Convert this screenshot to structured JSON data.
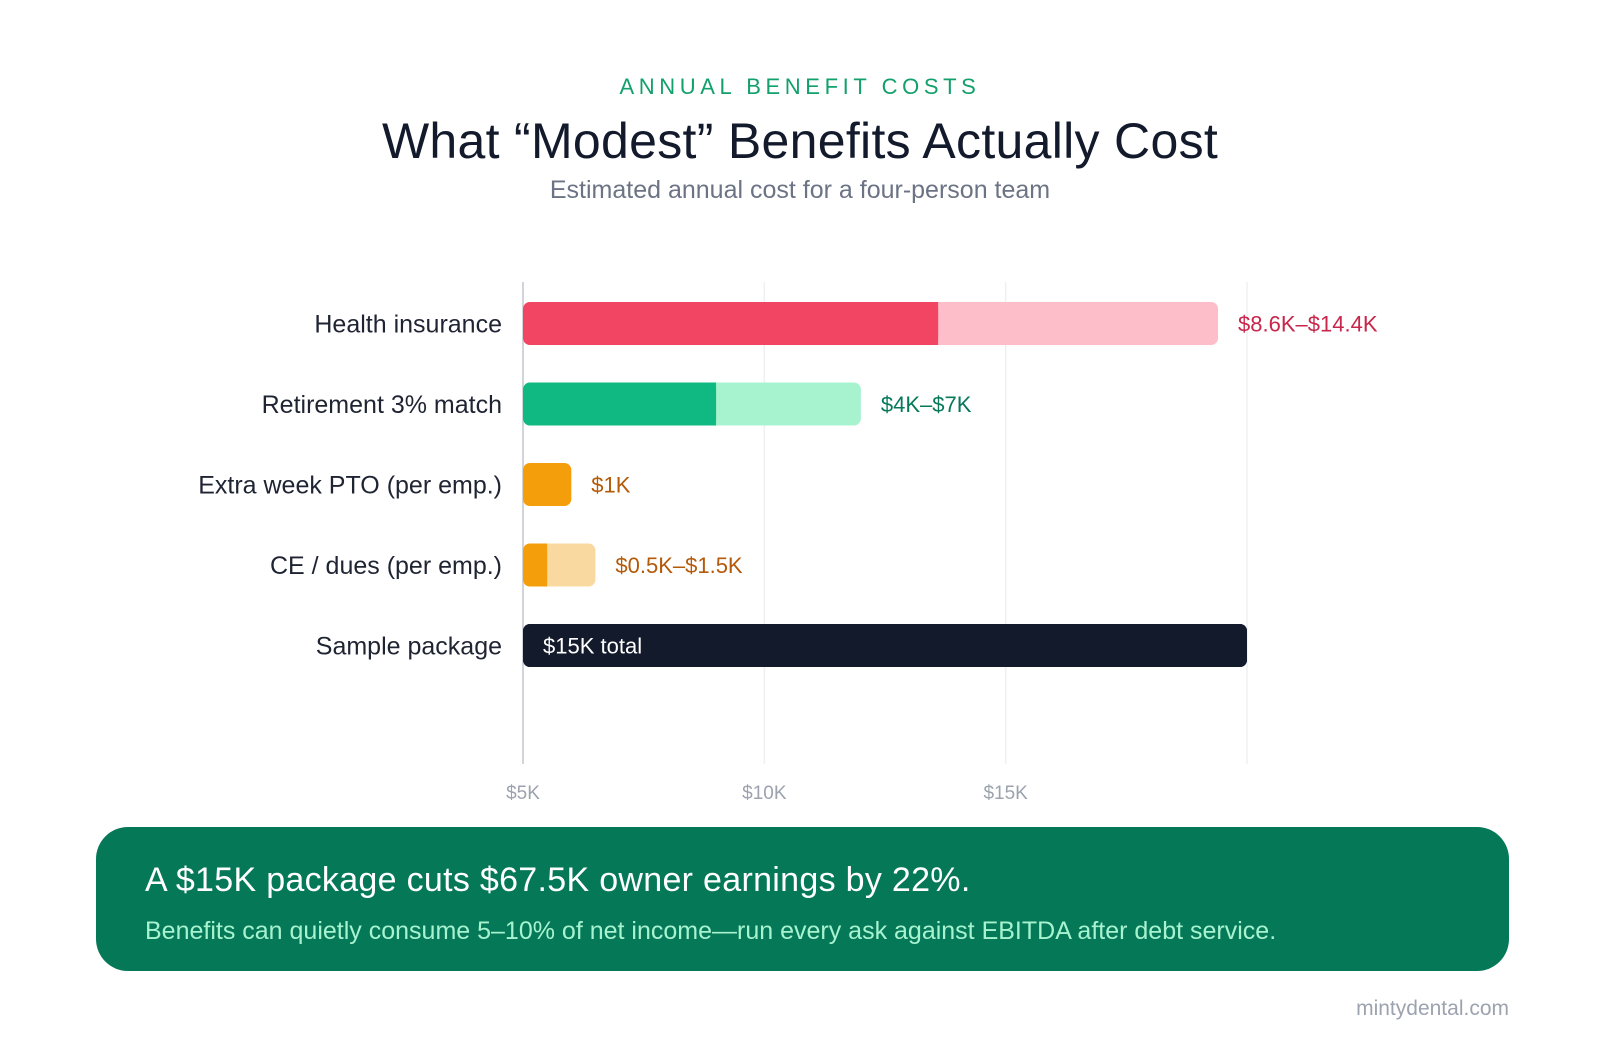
{
  "header": {
    "kicker": "ANNUAL BENEFIT COSTS",
    "title": "What “Modest” Benefits Actually Cost",
    "subtitle": "Estimated annual cost for a four-person team"
  },
  "chart_data": {
    "type": "bar",
    "orientation": "horizontal",
    "stacked_range": true,
    "categories": [
      "Health insurance",
      "Retirement 3% match",
      "Extra week PTO (per emp.)",
      "CE / dues (per emp.)",
      "Sample package"
    ],
    "series": [
      {
        "low": 8.6,
        "high": 14.4
      },
      {
        "low": 4,
        "high": 7
      },
      {
        "low": 1,
        "high": 1
      },
      {
        "low": 0.5,
        "high": 1.5
      },
      {
        "low": 15,
        "high": 15
      }
    ],
    "value_labels": [
      "$8.6K–$14.4K",
      "$4K–$7K",
      "$1K",
      "$0.5K–$1.5K",
      "$15K total"
    ],
    "value_label_inside": [
      false,
      false,
      false,
      false,
      true
    ],
    "colors": {
      "low": [
        "#f24463",
        "#10b981",
        "#f59e0b",
        "#f59e0b",
        "#121a2c"
      ],
      "high": [
        "#fdbec9",
        "#a7f3d0",
        "#fde0a8",
        "#fad9a0",
        "#121a2c"
      ],
      "label": [
        "#c8264b",
        "#07795a",
        "#b45a09",
        "#b45a09",
        "#ffffff"
      ]
    },
    "x_ticks": [
      5,
      10,
      15
    ],
    "x_tick_labels": [
      "$5K",
      "$10K",
      "$15K"
    ],
    "xlim": [
      0,
      15
    ],
    "grid": true,
    "unit": "K"
  },
  "callout": {
    "headline": "A $15K package cuts $67.5K owner earnings by 22%.",
    "subtext": "Benefits can quietly consume 5–10% of net income—run every ask against EBITDA after debt service."
  },
  "footer": {
    "brand": "mintydental.com"
  }
}
